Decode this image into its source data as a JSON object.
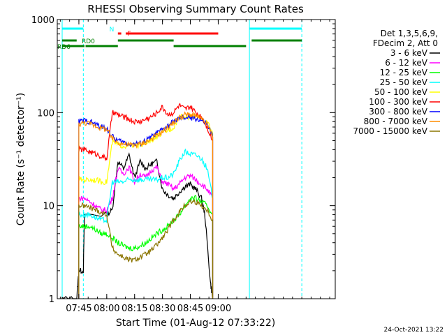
{
  "chart_data": {
    "type": "line",
    "title": "RHESSI Observing Summary Count Rates",
    "xlabel": "Start Time (01-Aug-12 07:33:22)",
    "ylabel": "Count Rate (s⁻¹ detector⁻¹)",
    "yscale": "log",
    "xlim": [
      7.5561,
      10.05
    ],
    "ylim": [
      1,
      1000
    ],
    "x_ticks": [
      {
        "value": 7.75,
        "label": "07:45"
      },
      {
        "value": 8.0,
        "label": "08:00"
      },
      {
        "value": 8.25,
        "label": "08:15"
      },
      {
        "value": 8.5,
        "label": "08:30"
      },
      {
        "value": 8.75,
        "label": "08:45"
      },
      {
        "value": 9.0,
        "label": "09:00"
      }
    ],
    "y_ticks": [
      {
        "value": 1,
        "label": "1"
      },
      {
        "value": 10,
        "label": "10"
      },
      {
        "value": 100,
        "label": "100"
      },
      {
        "value": 1000,
        "label": "1000"
      }
    ],
    "legend_header": [
      "Det 1,3,5,6,9,",
      "FDecim 2, Att 0"
    ],
    "legend_position": "right",
    "footer_date": "24-Oct-2021 13:22",
    "series": [
      {
        "name": "3 - 6 keV",
        "color": "#000000",
        "x": [
          7.6,
          7.73,
          7.75,
          7.79,
          7.8,
          8.0,
          8.05,
          8.1,
          8.15,
          8.2,
          8.25,
          8.3,
          8.35,
          8.4,
          8.45,
          8.5,
          8.55,
          8.6,
          8.65,
          8.7,
          8.75,
          8.8,
          8.85,
          8.88,
          8.93,
          8.95
        ],
        "y": [
          1,
          1,
          2,
          2,
          8,
          8,
          9,
          30,
          25,
          35,
          20,
          30,
          25,
          28,
          30,
          15,
          13,
          12,
          14,
          16,
          17,
          15,
          12,
          8,
          1.5,
          1
        ]
      },
      {
        "name": "6 - 12 keV",
        "color": "#ff00ff",
        "x": [
          7.75,
          7.8,
          7.85,
          7.9,
          7.95,
          8.0,
          8.05,
          8.1,
          8.15,
          8.2,
          8.25,
          8.3,
          8.35,
          8.4,
          8.45,
          8.5,
          8.55,
          8.6,
          8.65,
          8.7,
          8.75,
          8.8,
          8.85,
          8.9,
          8.95
        ],
        "y": [
          12,
          12,
          11,
          10,
          9,
          9,
          12,
          25,
          22,
          26,
          18,
          22,
          20,
          24,
          26,
          18,
          17,
          15,
          17,
          20,
          21,
          19,
          17,
          15,
          12
        ]
      },
      {
        "name": "12 - 25 keV",
        "color": "#00ff00",
        "x": [
          7.75,
          7.8,
          7.85,
          7.9,
          7.95,
          8.0,
          8.05,
          8.1,
          8.15,
          8.2,
          8.25,
          8.3,
          8.35,
          8.4,
          8.45,
          8.5,
          8.55,
          8.6,
          8.65,
          8.7,
          8.75,
          8.8,
          8.85,
          8.9,
          8.95
        ],
        "y": [
          6,
          6,
          6,
          5.5,
          5,
          5,
          4.5,
          4,
          3.7,
          3.5,
          3.5,
          3.7,
          4,
          4.5,
          5,
          5.5,
          6,
          7,
          8,
          10,
          12,
          12,
          11,
          10,
          8
        ]
      },
      {
        "name": "25 - 50 keV",
        "color": "#00ffff",
        "x": [
          7.75,
          7.8,
          7.85,
          7.9,
          7.95,
          8.0,
          8.05,
          8.1,
          8.15,
          8.2,
          8.25,
          8.3,
          8.35,
          8.4,
          8.45,
          8.5,
          8.55,
          8.6,
          8.65,
          8.7,
          8.75,
          8.8,
          8.85,
          8.9,
          8.95
        ],
        "y": [
          8,
          8,
          8,
          7.5,
          7,
          7,
          18,
          18,
          18,
          19,
          19,
          19,
          19,
          19,
          19,
          20,
          20,
          22,
          30,
          38,
          36,
          35,
          32,
          25,
          12
        ]
      },
      {
        "name": "50 - 100 keV",
        "color": "#ffff00",
        "x": [
          7.75,
          7.8,
          7.85,
          7.9,
          7.95,
          8.0,
          8.05,
          8.1,
          8.15,
          8.2,
          8.25,
          8.3,
          8.35,
          8.4,
          8.45,
          8.5,
          8.55,
          8.6,
          8.65,
          8.7,
          8.75,
          8.8,
          8.85,
          8.9,
          8.95
        ],
        "y": [
          19,
          19,
          19,
          19,
          18,
          18,
          48,
          45,
          44,
          44,
          44,
          45,
          47,
          50,
          55,
          60,
          65,
          70,
          90,
          90,
          90,
          90,
          88,
          80,
          60
        ]
      },
      {
        "name": "100 - 300 keV",
        "color": "#ff0000",
        "x": [
          7.75,
          7.8,
          7.85,
          7.9,
          7.95,
          8.0,
          8.05,
          8.1,
          8.15,
          8.2,
          8.25,
          8.3,
          8.35,
          8.4,
          8.45,
          8.5,
          8.55,
          8.6,
          8.65,
          8.7,
          8.75,
          8.8,
          8.85,
          8.9,
          8.95
        ],
        "y": [
          40,
          40,
          38,
          36,
          34,
          32,
          100,
          95,
          90,
          85,
          80,
          80,
          85,
          90,
          100,
          115,
          95,
          100,
          120,
          108,
          115,
          100,
          90,
          70,
          50
        ]
      },
      {
        "name": "300 - 800 keV",
        "color": "#0000ff",
        "x": [
          7.75,
          7.8,
          7.85,
          7.9,
          7.95,
          8.0,
          8.05,
          8.1,
          8.15,
          8.2,
          8.25,
          8.3,
          8.35,
          8.4,
          8.45,
          8.5,
          8.55,
          8.6,
          8.65,
          8.7,
          8.75,
          8.8,
          8.85,
          8.9,
          8.95
        ],
        "y": [
          80,
          82,
          80,
          75,
          70,
          68,
          55,
          50,
          48,
          46,
          46,
          47,
          50,
          55,
          60,
          65,
          72,
          80,
          86,
          88,
          88,
          86,
          82,
          75,
          55
        ]
      },
      {
        "name": "800 - 7000 keV",
        "color": "#ff8c00",
        "x": [
          7.75,
          7.8,
          7.85,
          7.9,
          7.95,
          8.0,
          8.05,
          8.1,
          8.15,
          8.2,
          8.25,
          8.3,
          8.35,
          8.4,
          8.45,
          8.5,
          8.55,
          8.6,
          8.65,
          8.7,
          8.75,
          8.8,
          8.85,
          8.9,
          8.95
        ],
        "y": [
          75,
          78,
          76,
          72,
          68,
          66,
          52,
          48,
          46,
          45,
          45,
          46,
          48,
          52,
          57,
          62,
          70,
          78,
          88,
          95,
          95,
          92,
          85,
          75,
          55
        ]
      },
      {
        "name": "7000 - 15000 keV",
        "color": "#8b7500",
        "x": [
          7.75,
          7.8,
          7.85,
          7.9,
          7.95,
          8.0,
          8.05,
          8.1,
          8.15,
          8.2,
          8.25,
          8.3,
          8.35,
          8.4,
          8.45,
          8.5,
          8.55,
          8.6,
          8.65,
          8.7,
          8.75,
          8.8,
          8.85,
          8.9,
          8.95
        ],
        "y": [
          10,
          10,
          9.5,
          9,
          8.5,
          8,
          3.5,
          3,
          2.8,
          2.6,
          2.6,
          2.8,
          3,
          3.3,
          3.8,
          4.5,
          5.5,
          7,
          8.5,
          10,
          11,
          11,
          10,
          9,
          7
        ]
      }
    ],
    "annotations": [
      {
        "label": "N",
        "color": "#00ffff",
        "segments": [
          [
            7.6,
            7.79
          ],
          [
            9.28,
            9.75
          ]
        ]
      },
      {
        "label": "F",
        "color": "#ff0000",
        "segments": [
          [
            8.1,
            8.13
          ],
          [
            8.17,
            9.0
          ]
        ]
      },
      {
        "label": "RD0",
        "color": "#008000",
        "segments": [
          [
            7.6,
            7.73
          ],
          [
            8.1,
            8.6
          ],
          [
            9.3,
            9.75
          ]
        ]
      },
      {
        "label": "RD6",
        "color": "#008000",
        "segments": [
          [
            7.6,
            7.8
          ],
          [
            7.81,
            8.1
          ],
          [
            8.6,
            9.25
          ]
        ]
      }
    ],
    "vlines": [
      {
        "x": 7.6,
        "color": "#00ffff",
        "style": "solid"
      },
      {
        "x": 7.79,
        "color": "#00ffff",
        "style": "dashed"
      },
      {
        "x": 9.28,
        "color": "#00ffff",
        "style": "solid"
      },
      {
        "x": 9.75,
        "color": "#00ffff",
        "style": "dashed"
      }
    ]
  }
}
